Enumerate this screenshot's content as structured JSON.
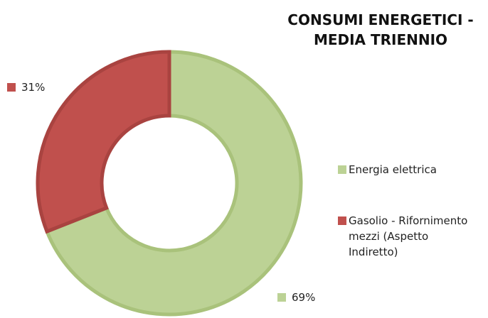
{
  "chart_data": {
    "type": "donut",
    "title": "CONSUMI ENERGETICI - MEDIA TRIENNIO",
    "categories": [
      "Energia elettrica",
      "Gasolio - Rifornimento mezzi (Aspetto Indiretto)"
    ],
    "values": [
      69,
      31
    ],
    "value_labels": [
      "69%",
      "31%"
    ],
    "colors": [
      "#bcd295",
      "#c0504d"
    ]
  }
}
